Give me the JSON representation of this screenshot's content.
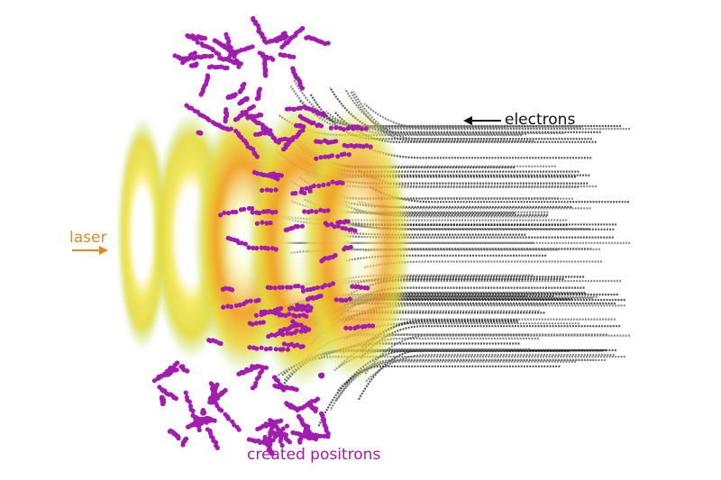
{
  "labels": {
    "laser": "laser",
    "electrons": "electrons",
    "positrons": "created positrons"
  },
  "colors": {
    "laser": "#e8871e",
    "electrons": "#111111",
    "positrons": "#a21caf",
    "ring_outer": "#d8df3a",
    "ring_inner": "#f09a1a",
    "electron_track": "#3a3a3a"
  },
  "icons": {
    "laser_arrow": "arrow-right-icon",
    "electron_arrow": "arrow-left-icon"
  }
}
